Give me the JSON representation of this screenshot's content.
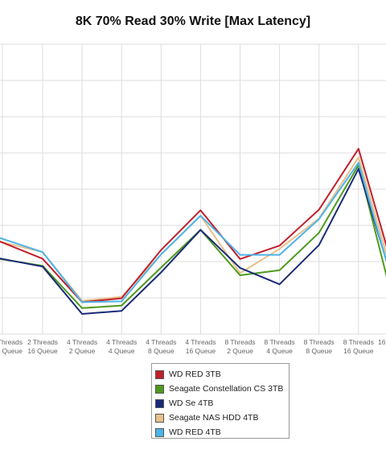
{
  "chart_data": {
    "type": "line",
    "title": "8K 70% Read 30% Write [Max Latency]",
    "categories": [
      [
        "2 Threads",
        "16 Queue"
      ],
      [
        "4 Threads",
        "2 Queue"
      ],
      [
        "4 Threads",
        "4 Queue"
      ],
      [
        "4 Threads",
        "8 Queue"
      ],
      [
        "4 Threads",
        "16 Queue"
      ],
      [
        "8 Threads",
        "2 Queue"
      ],
      [
        "8 Threads",
        "4 Queue"
      ],
      [
        "8 Threads",
        "8 Queue"
      ],
      [
        "8 Threads",
        "16 Queue"
      ]
    ],
    "edge_labels": {
      "left": [
        "Threads",
        "Queue"
      ],
      "right": [
        "16"
      ]
    },
    "grid": true,
    "legend_position": "bottom",
    "series": [
      {
        "name": "WD RED 3TB",
        "color": "#c0202a",
        "edge_left": 59.5,
        "edge_right": 30,
        "values": [
          46.8,
          19.8,
          22.2,
          52.2,
          76.9,
          46.6,
          54.9,
          77.3,
          115.1
        ]
      },
      {
        "name": "Seagate Constellation CS 3TB",
        "color": "#4e9a1d",
        "edge_left": 47.4,
        "edge_right": 8,
        "values": [
          42.4,
          16.1,
          17.7,
          41.3,
          64.7,
          36.5,
          39.6,
          62.9,
          104.9
        ]
      },
      {
        "name": "WD Se 4TB",
        "color": "#1b2a78",
        "edge_left": 47.9,
        "edge_right": 22,
        "values": [
          41.9,
          12.5,
          14.4,
          38.3,
          64.7,
          41.1,
          30.9,
          55.3,
          102.6
        ]
      },
      {
        "name": "Seagate NAS HDD 4TB",
        "color": "#e8c08a",
        "edge_left": 58.6,
        "edge_right": 25,
        "values": [
          50.9,
          20.7,
          23.1,
          49.5,
          73.5,
          37.8,
          52.9,
          71.8,
          109.8
        ]
      },
      {
        "name": "WD RED 4TB",
        "color": "#4db4e8",
        "edge_left": 61.3,
        "edge_right": 20,
        "values": [
          50.9,
          19.8,
          20.3,
          49.5,
          73.5,
          49.2,
          49.2,
          71.4,
          106.4
        ]
      }
    ]
  }
}
